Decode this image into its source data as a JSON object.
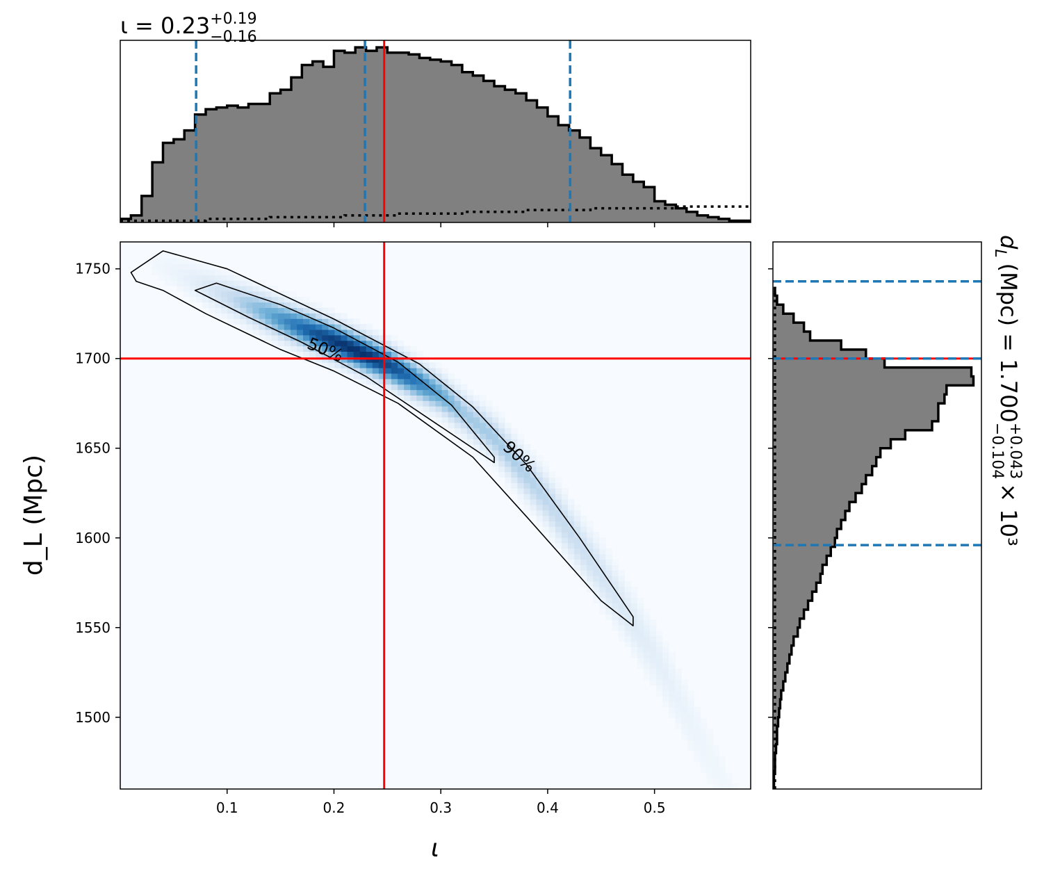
{
  "chart_data": {
    "type": "corner",
    "parameters": [
      "iota",
      "d_L"
    ],
    "joint": {
      "type": "heatmap",
      "xlabel": "ι",
      "ylabel": "d_L (Mpc)",
      "xlim": [
        0.0,
        0.59
      ],
      "ylim": [
        1460,
        1765
      ],
      "xticks": [
        "0.1",
        "0.2",
        "0.3",
        "0.4",
        "0.5"
      ],
      "yticks": [
        "1500",
        "1550",
        "1600",
        "1650",
        "1700",
        "1750"
      ],
      "colormap": "Blues",
      "density_ridge": {
        "x": [
          0.07,
          0.1,
          0.15,
          0.2,
          0.25,
          0.3,
          0.35,
          0.4,
          0.45,
          0.5,
          0.55
        ],
        "y": [
          1743,
          1735,
          1722,
          1710,
          1697,
          1680,
          1656,
          1621,
          1580,
          1535,
          1480
        ]
      },
      "contours": [
        {
          "label": "90%",
          "x": [
            0.01,
            0.04,
            0.1,
            0.2,
            0.28,
            0.33,
            0.38,
            0.43,
            0.48,
            0.48,
            0.45,
            0.38,
            0.33,
            0.26,
            0.2,
            0.15,
            0.08,
            0.04,
            0.015
          ],
          "y": [
            1748,
            1760,
            1750,
            1722,
            1697,
            1673,
            1641,
            1600,
            1556,
            1551,
            1565,
            1612,
            1645,
            1675,
            1693,
            1705,
            1725,
            1738,
            1743
          ]
        },
        {
          "label": "50%",
          "x": [
            0.07,
            0.09,
            0.15,
            0.2,
            0.26,
            0.31,
            0.35,
            0.35,
            0.3,
            0.23,
            0.17,
            0.12,
            0.08
          ],
          "y": [
            1738,
            1742,
            1730,
            1717,
            1698,
            1674,
            1645,
            1642,
            1662,
            1690,
            1709,
            1723,
            1735
          ]
        }
      ],
      "truth": {
        "x": 0.247,
        "y": 1700
      },
      "truth_color": "#ff0000"
    },
    "marginal_x": {
      "type": "histogram",
      "title": "ι = 0.23+0.19−0.16",
      "title_main": "ι = 0.23",
      "title_plus": "+0.19",
      "title_minus": "−0.16",
      "bin_edges_start": 0.0,
      "bin_width": 0.01,
      "counts": [
        2,
        4,
        15,
        34,
        45,
        47,
        52,
        61,
        64,
        65,
        66,
        65,
        67,
        67,
        73,
        75,
        82,
        89,
        91,
        88,
        97,
        96,
        99,
        97,
        99,
        96,
        96,
        95,
        93,
        92,
        91,
        89,
        85,
        83,
        80,
        77,
        75,
        73,
        69,
        65,
        60,
        55,
        52,
        48,
        42,
        38,
        33,
        27,
        23,
        20,
        12,
        10,
        8,
        6,
        4,
        3,
        2,
        1,
        1
      ],
      "prior_counts": [
        1,
        1,
        1,
        1,
        1,
        1,
        1,
        1,
        2,
        2,
        2,
        2,
        2,
        2,
        3,
        3,
        3,
        3,
        3,
        3,
        3,
        4,
        4,
        4,
        4,
        4,
        5,
        5,
        5,
        5,
        5,
        5,
        6,
        6,
        6,
        6,
        6,
        6,
        7,
        7,
        7,
        7,
        7,
        7,
        8,
        8,
        8,
        8,
        8,
        8,
        8,
        8,
        9,
        9,
        9,
        9,
        9,
        9,
        9
      ],
      "quantiles": [
        0.071,
        0.229,
        0.421
      ],
      "quantile_color": "#1f77b4",
      "truth": 0.247
    },
    "marginal_y": {
      "type": "histogram",
      "orientation": "horizontal",
      "title": "d_L (Mpc) = 1.700+0.043−0.104 × 10³",
      "title_main": "(Mpc) = 1.700",
      "title_plus": "+0.043",
      "title_minus": "−0.104",
      "title_times": "× 10³",
      "bin_edges_start": 1460,
      "bin_width": 5,
      "counts": [
        0.5,
        0.5,
        1,
        1,
        1.5,
        2,
        2,
        2.5,
        3,
        3.5,
        4,
        5,
        6,
        7,
        8,
        9,
        10,
        12,
        13,
        15,
        17,
        19,
        21,
        23,
        24,
        26,
        28,
        30,
        31,
        33,
        35,
        37,
        40,
        43,
        45,
        48,
        50,
        52,
        57,
        64,
        77,
        80,
        80,
        83,
        84,
        97,
        96,
        54,
        45,
        33,
        18,
        15,
        10,
        5,
        2,
        1
      ],
      "prior_counts": [
        1,
        1,
        1,
        1,
        1,
        1,
        1,
        1,
        1,
        1,
        1,
        1,
        1,
        1,
        1,
        1,
        1,
        1,
        1,
        1,
        1,
        1,
        1,
        1,
        1,
        1,
        1,
        1,
        1,
        1,
        1,
        1,
        1,
        1,
        1,
        1,
        1,
        1,
        1,
        1,
        1,
        1,
        1,
        1,
        1,
        1,
        1,
        1,
        1,
        1,
        1,
        1,
        1,
        1,
        1,
        1
      ],
      "quantiles": [
        1596,
        1700,
        1743
      ],
      "quantile_color": "#1f77b4",
      "truth": 1700
    }
  }
}
